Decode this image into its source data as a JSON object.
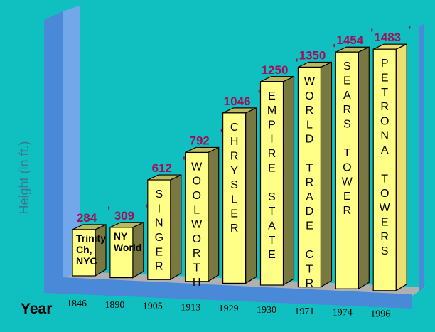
{
  "chart_data": {
    "type": "bar",
    "title": "",
    "xlabel": "Year",
    "ylabel": "Height (in ft.)",
    "categories": [
      "1846",
      "1890",
      "1905",
      "1913",
      "1929",
      "1930",
      "1971",
      "1974",
      "1996"
    ],
    "values": [
      284,
      309,
      612,
      792,
      1046,
      1250,
      1350,
      1454,
      1483
    ],
    "value_labels": [
      "284",
      "309",
      "612",
      "792",
      "1046",
      "1250",
      "1350",
      "1454",
      "1483"
    ],
    "value_suffix": "'",
    "bar_labels": [
      {
        "text": "Trinity Ch, NYC",
        "lines": [
          "Trinity",
          "Ch,",
          "NYC"
        ],
        "vertical": false
      },
      {
        "text": "NY World",
        "lines": [
          "NY",
          "World"
        ],
        "vertical": false
      },
      {
        "text": "SINGER",
        "vertical": true
      },
      {
        "text": "WOOLWORTH",
        "vertical": true
      },
      {
        "text": "CHRYSLER",
        "vertical": true
      },
      {
        "text": "EMPIRE STATE",
        "vertical": true
      },
      {
        "text": "WORLD TRADE CTR",
        "vertical": true
      },
      {
        "text": "SEARS TOWER",
        "vertical": true
      },
      {
        "text": "PETRONA TOWERS",
        "vertical": true
      }
    ],
    "style": "3d",
    "grid": false,
    "colors": {
      "background": "#10c0c0",
      "bar_front": "#ffff88",
      "bar_side": "#787840",
      "bar_top": "#b8b860",
      "highlight_side": "#eee070",
      "value_text": "#a0105a",
      "wall": "#4a88d8",
      "wall_light": "#72a8ea",
      "floor": "#b0b0b0"
    }
  }
}
